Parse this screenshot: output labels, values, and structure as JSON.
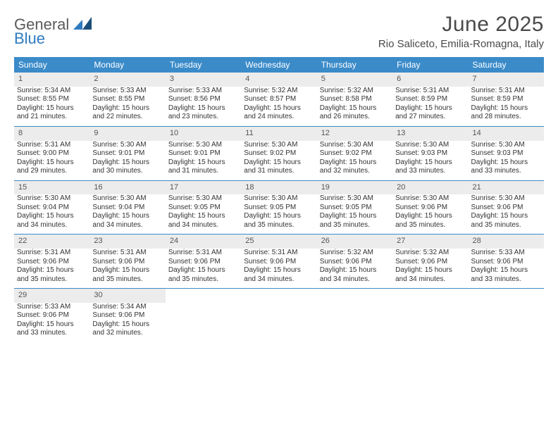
{
  "brand": {
    "word1": "General",
    "word2": "Blue"
  },
  "title": "June 2025",
  "location": "Rio Saliceto, Emilia-Romagna, Italy",
  "colors": {
    "header_bg": "#3b8bc9",
    "header_text": "#ffffff",
    "daynum_bg": "#ececec",
    "rule": "#3b8bc9",
    "text": "#333333",
    "brand_gray": "#5a5a5a",
    "brand_blue": "#2f7bbf",
    "page_bg": "#ffffff"
  },
  "typography": {
    "title_fontsize": 30,
    "location_fontsize": 15,
    "dayheader_fontsize": 12,
    "daynum_fontsize": 11,
    "cell_fontsize": 10
  },
  "day_headers": [
    "Sunday",
    "Monday",
    "Tuesday",
    "Wednesday",
    "Thursday",
    "Friday",
    "Saturday"
  ],
  "weeks": [
    [
      {
        "n": "1",
        "sr": "5:34 AM",
        "ss": "8:55 PM",
        "dl": "15 hours and 21 minutes."
      },
      {
        "n": "2",
        "sr": "5:33 AM",
        "ss": "8:55 PM",
        "dl": "15 hours and 22 minutes."
      },
      {
        "n": "3",
        "sr": "5:33 AM",
        "ss": "8:56 PM",
        "dl": "15 hours and 23 minutes."
      },
      {
        "n": "4",
        "sr": "5:32 AM",
        "ss": "8:57 PM",
        "dl": "15 hours and 24 minutes."
      },
      {
        "n": "5",
        "sr": "5:32 AM",
        "ss": "8:58 PM",
        "dl": "15 hours and 26 minutes."
      },
      {
        "n": "6",
        "sr": "5:31 AM",
        "ss": "8:59 PM",
        "dl": "15 hours and 27 minutes."
      },
      {
        "n": "7",
        "sr": "5:31 AM",
        "ss": "8:59 PM",
        "dl": "15 hours and 28 minutes."
      }
    ],
    [
      {
        "n": "8",
        "sr": "5:31 AM",
        "ss": "9:00 PM",
        "dl": "15 hours and 29 minutes."
      },
      {
        "n": "9",
        "sr": "5:30 AM",
        "ss": "9:01 PM",
        "dl": "15 hours and 30 minutes."
      },
      {
        "n": "10",
        "sr": "5:30 AM",
        "ss": "9:01 PM",
        "dl": "15 hours and 31 minutes."
      },
      {
        "n": "11",
        "sr": "5:30 AM",
        "ss": "9:02 PM",
        "dl": "15 hours and 31 minutes."
      },
      {
        "n": "12",
        "sr": "5:30 AM",
        "ss": "9:02 PM",
        "dl": "15 hours and 32 minutes."
      },
      {
        "n": "13",
        "sr": "5:30 AM",
        "ss": "9:03 PM",
        "dl": "15 hours and 33 minutes."
      },
      {
        "n": "14",
        "sr": "5:30 AM",
        "ss": "9:03 PM",
        "dl": "15 hours and 33 minutes."
      }
    ],
    [
      {
        "n": "15",
        "sr": "5:30 AM",
        "ss": "9:04 PM",
        "dl": "15 hours and 34 minutes."
      },
      {
        "n": "16",
        "sr": "5:30 AM",
        "ss": "9:04 PM",
        "dl": "15 hours and 34 minutes."
      },
      {
        "n": "17",
        "sr": "5:30 AM",
        "ss": "9:05 PM",
        "dl": "15 hours and 34 minutes."
      },
      {
        "n": "18",
        "sr": "5:30 AM",
        "ss": "9:05 PM",
        "dl": "15 hours and 35 minutes."
      },
      {
        "n": "19",
        "sr": "5:30 AM",
        "ss": "9:05 PM",
        "dl": "15 hours and 35 minutes."
      },
      {
        "n": "20",
        "sr": "5:30 AM",
        "ss": "9:06 PM",
        "dl": "15 hours and 35 minutes."
      },
      {
        "n": "21",
        "sr": "5:30 AM",
        "ss": "9:06 PM",
        "dl": "15 hours and 35 minutes."
      }
    ],
    [
      {
        "n": "22",
        "sr": "5:31 AM",
        "ss": "9:06 PM",
        "dl": "15 hours and 35 minutes."
      },
      {
        "n": "23",
        "sr": "5:31 AM",
        "ss": "9:06 PM",
        "dl": "15 hours and 35 minutes."
      },
      {
        "n": "24",
        "sr": "5:31 AM",
        "ss": "9:06 PM",
        "dl": "15 hours and 35 minutes."
      },
      {
        "n": "25",
        "sr": "5:31 AM",
        "ss": "9:06 PM",
        "dl": "15 hours and 34 minutes."
      },
      {
        "n": "26",
        "sr": "5:32 AM",
        "ss": "9:06 PM",
        "dl": "15 hours and 34 minutes."
      },
      {
        "n": "27",
        "sr": "5:32 AM",
        "ss": "9:06 PM",
        "dl": "15 hours and 34 minutes."
      },
      {
        "n": "28",
        "sr": "5:33 AM",
        "ss": "9:06 PM",
        "dl": "15 hours and 33 minutes."
      }
    ],
    [
      {
        "n": "29",
        "sr": "5:33 AM",
        "ss": "9:06 PM",
        "dl": "15 hours and 33 minutes."
      },
      {
        "n": "30",
        "sr": "5:34 AM",
        "ss": "9:06 PM",
        "dl": "15 hours and 32 minutes."
      },
      null,
      null,
      null,
      null,
      null
    ]
  ],
  "labels": {
    "sunrise": "Sunrise: ",
    "sunset": "Sunset: ",
    "daylight": "Daylight: "
  }
}
